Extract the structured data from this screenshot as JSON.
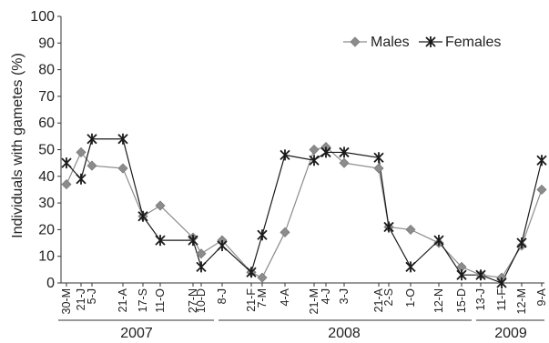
{
  "chart_data": {
    "type": "line",
    "ylabel": "Individuals with gametes (%)",
    "ylim": [
      0,
      100
    ],
    "yticks": [
      0,
      10,
      20,
      30,
      40,
      50,
      60,
      70,
      80,
      90,
      100
    ],
    "grid": false,
    "legend_position": "top-right",
    "tick_labels": [
      "30-M",
      "21-J",
      "5-J",
      "21-A",
      "17-S",
      "11-O",
      "27-N",
      "10-D",
      "8-J",
      "21-F",
      "7-M",
      "4-A",
      "21-M",
      "4-J",
      "3-J",
      "21-A",
      "2-S",
      "1-O",
      "12-N",
      "15-D",
      "13-J",
      "11-F",
      "12-M",
      "9-A"
    ],
    "years": [
      "2007",
      "2008",
      "2009"
    ],
    "series": [
      {
        "name": "Males",
        "color": "#8c8c8c",
        "marker": "diamond",
        "values": [
          37,
          49,
          44,
          43,
          25,
          29,
          17,
          11,
          16,
          4,
          2,
          19,
          50,
          51,
          45,
          43,
          21,
          20,
          15,
          6,
          3,
          2,
          14,
          35
        ]
      },
      {
        "name": "Females",
        "color": "#1a1a1a",
        "marker": "x",
        "values": [
          45,
          39,
          54,
          54,
          25,
          16,
          16,
          6,
          14,
          4,
          18,
          48,
          46,
          49,
          49,
          47,
          21,
          6,
          16,
          3,
          3,
          0,
          15,
          46
        ]
      }
    ]
  }
}
